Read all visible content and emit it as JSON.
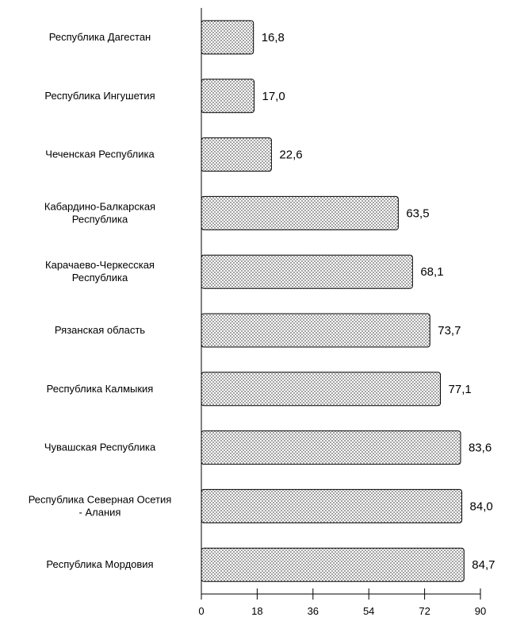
{
  "chart_data": {
    "type": "bar",
    "orientation": "horizontal",
    "title": "",
    "xlabel": "",
    "ylabel": "",
    "categories": [
      [
        "Республика Дагестан"
      ],
      [
        "Республика Ингушетия"
      ],
      [
        "Чеченская Республика"
      ],
      [
        "Кабардино-Балкарская",
        "Республика"
      ],
      [
        "Карачаево-Черкесская",
        "Республика"
      ],
      [
        "Рязанская область"
      ],
      [
        "Республика Калмыкия"
      ],
      [
        "Чувашская Республика"
      ],
      [
        "Республика Северная Осетия",
        "- Алания"
      ],
      [
        "Республика Мордовия"
      ]
    ],
    "values": [
      16.8,
      17.0,
      22.6,
      63.5,
      68.1,
      73.7,
      77.1,
      83.6,
      84.0,
      84.7
    ],
    "value_labels": [
      "16,8",
      "17,0",
      "22,6",
      "63,5",
      "68,1",
      "73,7",
      "77,1",
      "83,6",
      "84,0",
      "84,7"
    ],
    "xlim": [
      0,
      90
    ],
    "xticks": [
      0,
      18,
      36,
      54,
      72,
      90
    ],
    "grid": false,
    "legend": false,
    "bar_fill": "dotted-pattern",
    "colors": {
      "bar_border": "#000000",
      "bar_background": "#ffffff",
      "dot": "#555555",
      "axis": "#000000"
    }
  }
}
